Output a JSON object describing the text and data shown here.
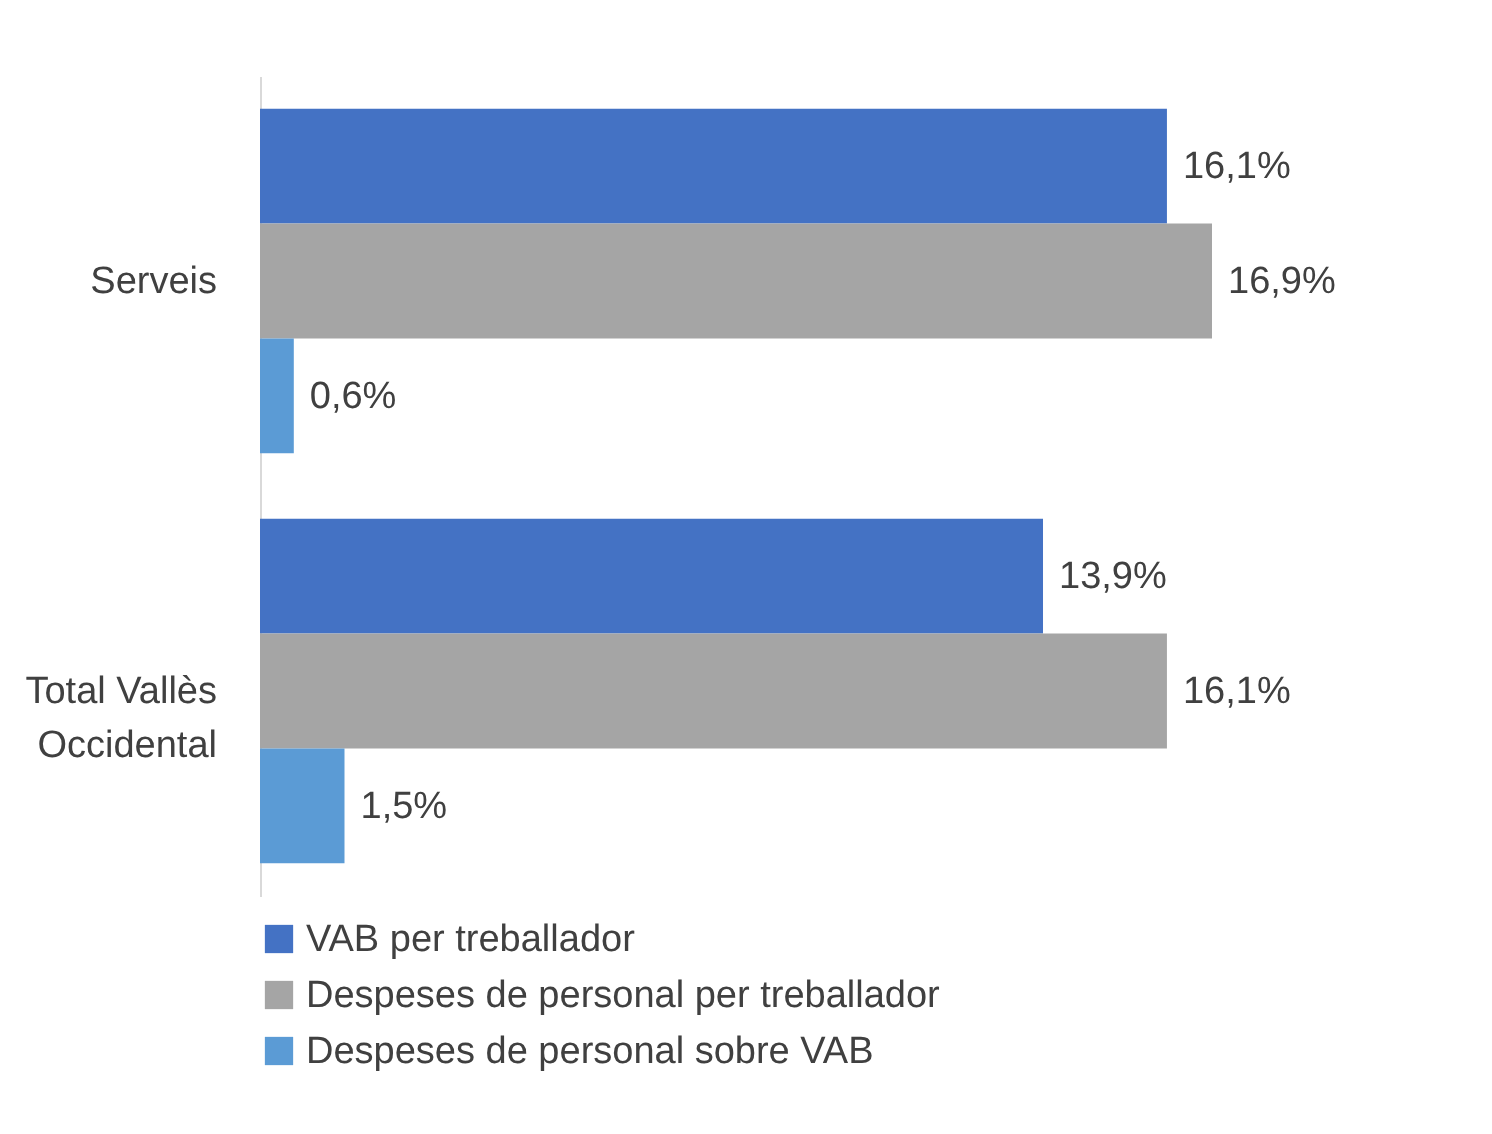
{
  "chart_data": {
    "type": "bar",
    "orientation": "horizontal",
    "categories": [
      "Serveis",
      "Total Vallès Occidental"
    ],
    "series": [
      {
        "name": "VAB per treballador",
        "color": "#4472c4",
        "values": [
          16.1,
          13.9
        ],
        "value_labels": [
          "16,1%",
          "13,9%"
        ]
      },
      {
        "name": "Despeses de personal per treballador",
        "color": "#a5a5a5",
        "values": [
          16.9,
          16.1
        ],
        "value_labels": [
          "16,9%",
          "16,1%"
        ]
      },
      {
        "name": "Despeses de personal sobre VAB",
        "color": "#5b9bd5",
        "values": [
          0.6,
          1.5
        ],
        "value_labels": [
          "0,6%",
          "1,5%"
        ]
      }
    ],
    "legend": "bottom"
  }
}
